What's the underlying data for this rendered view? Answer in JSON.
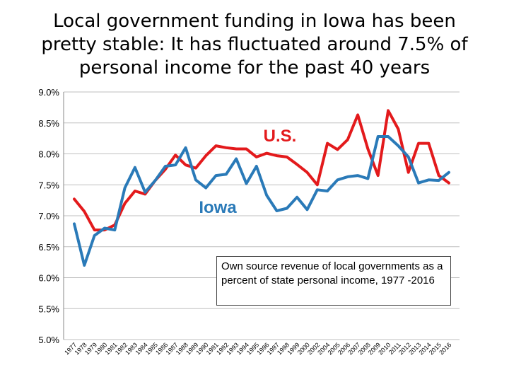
{
  "chart_data": {
    "type": "line",
    "title": "Local government funding in Iowa has been pretty stable: It has fluctuated around 7.5% of personal income for the past 40 years",
    "xlabel": "",
    "ylabel": "",
    "ylim": [
      5.0,
      9.0
    ],
    "yticks": [
      "5.0%",
      "5.5%",
      "6.0%",
      "6.5%",
      "7.0%",
      "7.5%",
      "8.0%",
      "8.5%",
      "9.0%"
    ],
    "grid": true,
    "x": [
      "1977",
      "1978",
      "1979",
      "1980",
      "1981",
      "1982",
      "1983",
      "1984",
      "1985",
      "1986",
      "1987",
      "1988",
      "1989",
      "1990",
      "1991",
      "1992",
      "1993",
      "1994",
      "1995",
      "1996",
      "1997",
      "1998",
      "1999",
      "2000",
      "2002",
      "2004",
      "2005",
      "2006",
      "2007",
      "2008",
      "2009",
      "2010",
      "2011",
      "2012",
      "2013",
      "2014",
      "2015",
      "2016"
    ],
    "series": [
      {
        "name": "U.S.",
        "color": "#e31a1c",
        "values": [
          7.27,
          7.07,
          6.77,
          6.77,
          6.85,
          7.2,
          7.4,
          7.35,
          7.57,
          7.75,
          7.98,
          7.82,
          7.77,
          7.97,
          8.13,
          8.1,
          8.08,
          8.08,
          7.95,
          8.01,
          7.97,
          7.95,
          7.83,
          7.7,
          7.5,
          8.17,
          8.07,
          8.23,
          8.63,
          8.08,
          7.65,
          8.7,
          8.4,
          7.7,
          8.17,
          8.17,
          7.65,
          7.53
        ]
      },
      {
        "name": "Iowa",
        "color": "#2a7ab8",
        "values": [
          6.87,
          6.2,
          6.68,
          6.8,
          6.77,
          7.45,
          7.78,
          7.38,
          7.57,
          7.8,
          7.82,
          8.1,
          7.58,
          7.45,
          7.65,
          7.67,
          7.92,
          7.52,
          7.8,
          7.33,
          7.08,
          7.12,
          7.3,
          7.1,
          7.42,
          7.4,
          7.58,
          7.63,
          7.65,
          7.6,
          8.28,
          8.28,
          8.13,
          7.95,
          7.53,
          7.58,
          7.57,
          7.7
        ]
      }
    ],
    "annotation": "Own source revenue of local governments as a percent of state personal income, 1977 -2016"
  }
}
